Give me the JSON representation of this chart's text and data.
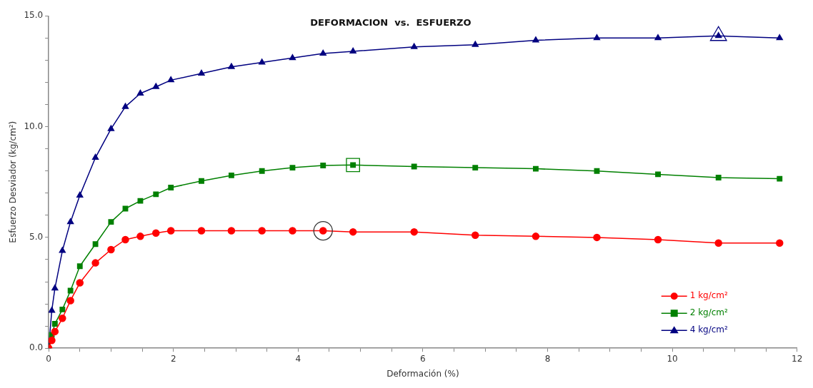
{
  "chart_data": {
    "type": "line",
    "title": "DEFORMACION  vs.  ESFUERZO",
    "xlabel": "Deformación (%)",
    "ylabel": "Esfuerzo Desviador (kg/cm²)",
    "x": [
      0,
      0.05,
      0.1,
      0.22,
      0.35,
      0.5,
      0.75,
      1.0,
      1.23,
      1.47,
      1.72,
      1.96,
      2.45,
      2.93,
      3.42,
      3.91,
      4.4,
      4.88,
      5.86,
      6.84,
      7.81,
      8.79,
      9.77,
      10.74,
      11.72
    ],
    "series": [
      {
        "name": "1 kg/cm²",
        "color": "#ff0000",
        "marker": "circle",
        "values": [
          0,
          0.35,
          0.75,
          1.35,
          2.15,
          2.95,
          3.85,
          4.45,
          4.9,
          5.05,
          5.2,
          5.3,
          5.3,
          5.3,
          5.3,
          5.3,
          5.3,
          5.25,
          5.25,
          5.1,
          5.05,
          5.0,
          4.9,
          4.75,
          4.75
        ]
      },
      {
        "name": "2 kg/cm²",
        "color": "#008000",
        "marker": "square",
        "values": [
          0,
          0.6,
          1.1,
          1.75,
          2.6,
          3.7,
          4.7,
          5.7,
          6.3,
          6.65,
          6.95,
          7.25,
          7.55,
          7.8,
          8.0,
          8.15,
          8.25,
          8.27,
          8.2,
          8.15,
          8.1,
          8.0,
          7.85,
          7.7,
          7.65
        ]
      },
      {
        "name": "4 kg/cm²",
        "color": "#000080",
        "marker": "triangle",
        "values": [
          0,
          1.7,
          2.7,
          4.4,
          5.7,
          6.9,
          8.6,
          9.9,
          10.9,
          11.5,
          11.8,
          12.1,
          12.4,
          12.7,
          12.9,
          13.1,
          13.3,
          13.4,
          13.6,
          13.7,
          13.9,
          14.0,
          14.0,
          14.1,
          14.0
        ]
      },
      {
        "type": "scatter",
        "color": "#333333",
        "marker": "circle",
        "x": [
          4.4
        ],
        "values": [
          5.3
        ]
      },
      {
        "type": "scatter",
        "color": "#008000",
        "marker": "square",
        "x": [
          4.88
        ],
        "values": [
          8.27
        ]
      },
      {
        "type": "scatter",
        "color": "#000080",
        "marker": "triangle",
        "x": [
          10.74
        ],
        "values": [
          14.1
        ]
      }
    ],
    "xlim": [
      0,
      12
    ],
    "xticks": [
      0,
      {
        "value": 0.5,
        "label": null
      },
      {
        "value": 1,
        "label": null
      },
      {
        "value": 1.5,
        "label": null
      },
      2,
      {
        "value": 2.5,
        "label": null
      },
      {
        "value": 3,
        "label": null
      },
      {
        "value": 3.5,
        "label": null
      },
      4,
      {
        "value": 4.5,
        "label": null
      },
      {
        "value": 5,
        "label": null
      },
      {
        "value": 5.5,
        "label": null
      },
      6,
      {
        "value": 6.5,
        "label": null
      },
      {
        "value": 7,
        "label": null
      },
      {
        "value": 7.5,
        "label": null
      },
      8,
      {
        "value": 8.5,
        "label": null
      },
      {
        "value": 9,
        "label": null
      },
      {
        "value": 9.5,
        "label": null
      },
      10,
      {
        "value": 10.5,
        "label": null
      },
      {
        "value": 11,
        "label": null
      },
      {
        "value": 11.5,
        "label": null
      },
      12
    ],
    "ylim": [
      0,
      15
    ],
    "yticks": [
      {
        "value": 0,
        "label": "0.0"
      },
      {
        "value": 1,
        "label": null
      },
      {
        "value": 2,
        "label": null
      },
      {
        "value": 3,
        "label": null
      },
      {
        "value": 4,
        "label": null
      },
      {
        "value": 5,
        "label": "5.0"
      },
      {
        "value": 6,
        "label": null
      },
      {
        "value": 7,
        "label": null
      },
      {
        "value": 8,
        "label": null
      },
      {
        "value": 9,
        "label": null
      },
      {
        "value": 10,
        "label": "10.0"
      },
      {
        "value": 11,
        "label": null
      },
      {
        "value": 12,
        "label": null
      },
      {
        "value": 13,
        "label": null
      },
      {
        "value": 14,
        "label": null
      },
      {
        "value": 15,
        "label": "15.0"
      }
    ],
    "grid": false,
    "legend": "bottom right",
    "line_style": "solid"
  }
}
